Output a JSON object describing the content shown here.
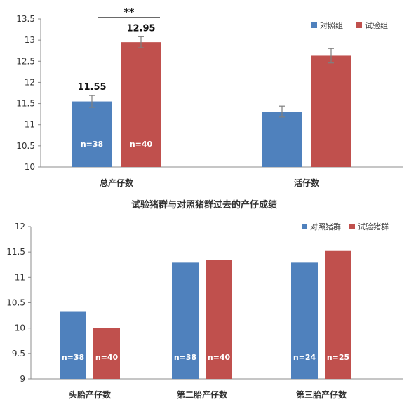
{
  "colors": {
    "control": "#4F81BD",
    "trial": "#C0504D",
    "axis": "#8C8C8C",
    "error": "#7F7F7F"
  },
  "chart_data": [
    {
      "type": "bar",
      "title": "",
      "categories": [
        "总产仔数",
        "活仔数"
      ],
      "series": [
        {
          "name": "对照组",
          "values": [
            11.55,
            11.31
          ],
          "errors": [
            0.14,
            0.13
          ],
          "n_labels": [
            "n=38",
            ""
          ],
          "value_labels": [
            "11.55",
            ""
          ]
        },
        {
          "name": "试验组",
          "values": [
            12.95,
            12.63
          ],
          "errors": [
            0.13,
            0.17
          ],
          "n_labels": [
            "n=40",
            ""
          ],
          "value_labels": [
            "12.95",
            ""
          ]
        }
      ],
      "ylim": [
        10,
        13.5
      ],
      "yticks": [
        "10",
        "10.5",
        "11",
        "11.5",
        "12",
        "12.5",
        "13",
        "13.5"
      ],
      "significance": "**",
      "legend": "top-right",
      "grid": false
    },
    {
      "type": "bar",
      "title": "试验猪群与对照猪群过去的产仔成绩",
      "categories": [
        "头胎产仔数",
        "第二胎产仔数",
        "第三胎产仔数"
      ],
      "series": [
        {
          "name": "对照猪群",
          "values": [
            10.32,
            11.29,
            11.29
          ],
          "n_labels": [
            "n=38",
            "n=38",
            "n=24"
          ]
        },
        {
          "name": "试验猪群",
          "values": [
            10.0,
            11.34,
            11.52
          ],
          "n_labels": [
            "n=40",
            "n=40",
            "n=25"
          ]
        }
      ],
      "ylim": [
        9,
        12
      ],
      "yticks": [
        "9",
        "9.5",
        "10",
        "10.5",
        "11",
        "11.5",
        "12"
      ],
      "legend": "top-right",
      "grid": false
    }
  ]
}
